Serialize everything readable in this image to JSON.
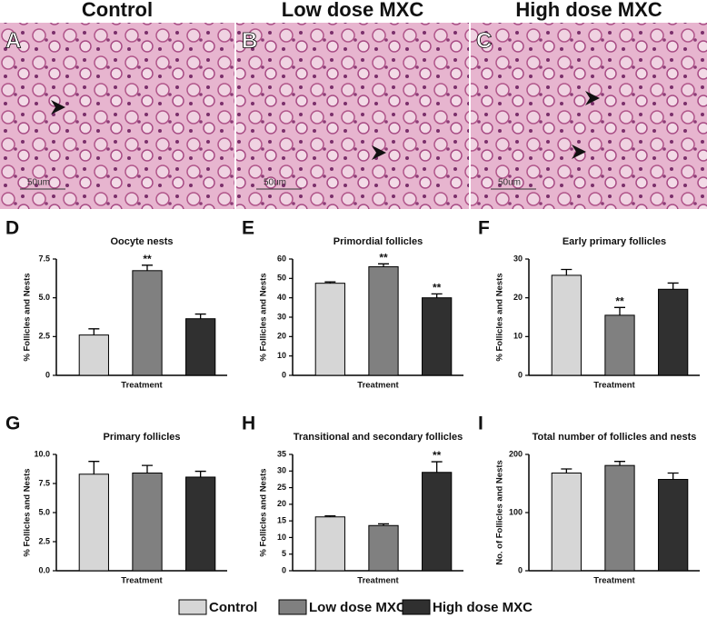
{
  "photos": [
    {
      "title": "Control",
      "letter": "A",
      "scale_bar": "50um"
    },
    {
      "title": "Low dose MXC",
      "letter": "B",
      "scale_bar": "50um"
    },
    {
      "title": "High dose MXC",
      "letter": "C",
      "scale_bar": "50um"
    }
  ],
  "legend": [
    {
      "name": "Control",
      "color": "#d6d6d6"
    },
    {
      "name": "Low dose MXC",
      "color": "#808080"
    },
    {
      "name": "High dose MXC",
      "color": "#303030"
    }
  ],
  "chart_data": [
    {
      "type": "bar",
      "letter": "D",
      "title": "Oocyte nests",
      "ylabel": "% Follicles and Nests",
      "xlabel": "Treatment",
      "values": [
        2.6,
        6.75,
        3.65
      ],
      "errors": [
        0.4,
        0.35,
        0.3
      ],
      "significance": [
        null,
        "**",
        null
      ],
      "ylim": [
        0,
        7.5
      ],
      "yticks": [
        0,
        2.5,
        {
          "value": 5,
          "label": "5.0"
        },
        7.5
      ]
    },
    {
      "type": "bar",
      "letter": "E",
      "title": "Primordial follicles",
      "ylabel": "% Follicles and Nests",
      "xlabel": "Treatment",
      "values": [
        47.5,
        56,
        40
      ],
      "errors": [
        0.7,
        1.5,
        2
      ],
      "significance": [
        null,
        "**",
        "**"
      ],
      "ylim": [
        0,
        60
      ],
      "yticks": [
        0,
        10,
        20,
        30,
        40,
        50,
        60
      ]
    },
    {
      "type": "bar",
      "letter": "F",
      "title": "Early primary follicles",
      "ylabel": "% Follicles and Nests",
      "xlabel": "Treatment",
      "values": [
        25.8,
        15.5,
        22.2
      ],
      "errors": [
        1.5,
        2,
        1.6
      ],
      "significance": [
        null,
        "**",
        null
      ],
      "ylim": [
        0,
        30
      ],
      "yticks": [
        0,
        10,
        20,
        30
      ]
    },
    {
      "type": "bar",
      "letter": "G",
      "title": "Primary follicles",
      "ylabel": "% Follicles and Nests",
      "xlabel": "Treatment",
      "values": [
        8.3,
        8.4,
        8.05
      ],
      "errors": [
        1.1,
        0.65,
        0.5
      ],
      "significance": [
        null,
        null,
        null
      ],
      "ylim": [
        0,
        10
      ],
      "yticks": [
        {
          "value": 0,
          "label": "0.0"
        },
        2.5,
        {
          "value": 5,
          "label": "5.0"
        },
        7.5,
        {
          "value": 10,
          "label": "10.0"
        }
      ]
    },
    {
      "type": "bar",
      "letter": "H",
      "title": "Transitional and secondary follicles",
      "ylabel": "% Follicles and Nests",
      "xlabel": "Treatment",
      "values": [
        16.2,
        13.6,
        29.6
      ],
      "errors": [
        0.3,
        0.5,
        3.2
      ],
      "significance": [
        null,
        null,
        "**"
      ],
      "ylim": [
        0,
        35
      ],
      "yticks": [
        0,
        5,
        10,
        15,
        20,
        25,
        30,
        35
      ]
    },
    {
      "type": "bar",
      "letter": "I",
      "title": "Total number of follicles and nests",
      "ylabel": "No. of Follicles and Nests",
      "xlabel": "Treatment",
      "values": [
        168,
        181,
        157
      ],
      "errors": [
        7,
        7,
        11
      ],
      "significance": [
        null,
        null,
        null
      ],
      "ylim": [
        0,
        200
      ],
      "yticks": [
        0,
        100,
        200
      ]
    }
  ]
}
